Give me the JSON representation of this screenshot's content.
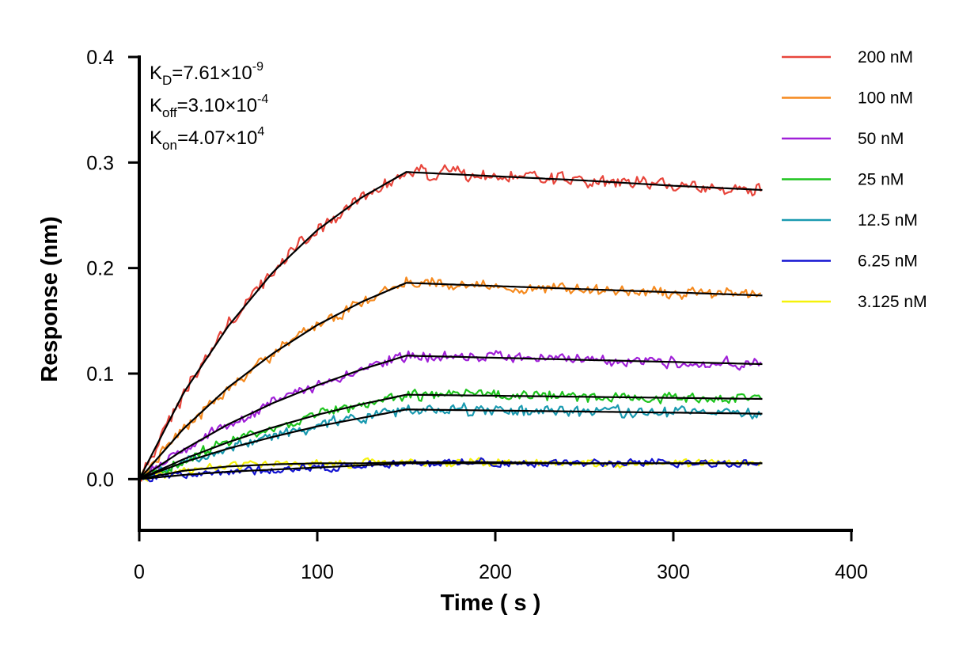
{
  "chart_data": {
    "type": "line",
    "title": "",
    "xlabel": "Time ( s )",
    "ylabel": "Response (nm)",
    "xlim": [
      0,
      400
    ],
    "ylim": [
      -0.05,
      0.4
    ],
    "x_ticks": [
      "0",
      "100",
      "200",
      "300",
      "400"
    ],
    "y_ticks": [
      "0.0",
      "0.1",
      "0.2",
      "0.3",
      "0.4"
    ],
    "grid": false,
    "legend_position": "right",
    "association_end": 150,
    "x_end": 350,
    "annotations": [
      {
        "main": "K",
        "sub": "D",
        "mid": "=7.61×10",
        "sup": "-9"
      },
      {
        "main": "K",
        "sub": "off",
        "mid": "=3.10×10",
        "sup": "-4"
      },
      {
        "main": "K",
        "sub": "on",
        "mid": "=4.07×10",
        "sup": "4"
      }
    ],
    "series": [
      {
        "name": "200 nM",
        "color": "#e8463c",
        "fit_x": [
          0,
          25,
          50,
          75,
          100,
          125,
          150,
          200,
          250,
          300,
          350
        ],
        "fit_y": [
          0,
          0.082,
          0.145,
          0.196,
          0.236,
          0.267,
          0.291,
          0.287,
          0.283,
          0.278,
          0.274
        ],
        "noise": 0.005
      },
      {
        "name": "100 nM",
        "color": "#f58a1f",
        "fit_x": [
          0,
          25,
          50,
          75,
          100,
          125,
          150,
          200,
          250,
          300,
          350
        ],
        "fit_y": [
          0,
          0.048,
          0.087,
          0.119,
          0.146,
          0.168,
          0.186,
          0.183,
          0.18,
          0.177,
          0.174
        ],
        "noise": 0.004
      },
      {
        "name": "50 nM",
        "color": "#a020d8",
        "fit_x": [
          0,
          25,
          50,
          75,
          100,
          125,
          150,
          200,
          250,
          300,
          350
        ],
        "fit_y": [
          0,
          0.028,
          0.052,
          0.072,
          0.089,
          0.104,
          0.117,
          0.115,
          0.113,
          0.111,
          0.109
        ],
        "noise": 0.004
      },
      {
        "name": "25 nM",
        "color": "#1ec41e",
        "fit_x": [
          0,
          25,
          50,
          75,
          100,
          125,
          150,
          200,
          250,
          300,
          350
        ],
        "fit_y": [
          0,
          0.019,
          0.035,
          0.049,
          0.061,
          0.071,
          0.08,
          0.079,
          0.078,
          0.077,
          0.076
        ],
        "noise": 0.004
      },
      {
        "name": "12.5 nM",
        "color": "#1a9ab0",
        "fit_x": [
          0,
          25,
          50,
          75,
          100,
          125,
          150,
          200,
          250,
          300,
          350
        ],
        "fit_y": [
          0,
          0.016,
          0.029,
          0.04,
          0.05,
          0.058,
          0.066,
          0.065,
          0.064,
          0.063,
          0.062
        ],
        "noise": 0.004
      },
      {
        "name": "6.25 nM",
        "color": "#1414d2",
        "fit_x": [
          0,
          25,
          50,
          75,
          100,
          125,
          150,
          200,
          250,
          300,
          350
        ],
        "fit_y": [
          0,
          0.004,
          0.007,
          0.009,
          0.011,
          0.013,
          0.015,
          0.015,
          0.015,
          0.015,
          0.015
        ],
        "noise": 0.003
      },
      {
        "name": "3.125 nM",
        "color": "#f5f20a",
        "fit_x": [
          0,
          25,
          50,
          75,
          100,
          125,
          150,
          200,
          250,
          300,
          350
        ],
        "fit_y": [
          0,
          0.008,
          0.012,
          0.014,
          0.015,
          0.015,
          0.016,
          0.016,
          0.015,
          0.015,
          0.015
        ],
        "noise": 0.003
      }
    ]
  }
}
